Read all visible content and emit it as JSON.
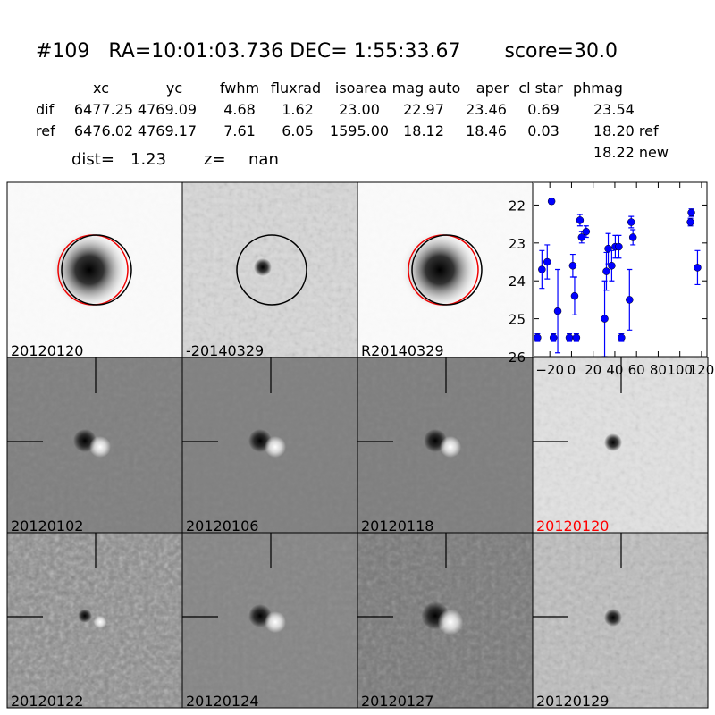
{
  "header": {
    "title": "#109   RA=10:01:03.736 DEC= 1:55:33.67       score=30.0"
  },
  "table": {
    "columns": [
      "xc",
      "yc",
      "fwhm",
      "fluxrad",
      "isoarea",
      "mag auto",
      "aper",
      "cl star",
      "phmag"
    ],
    "rows": [
      [
        "dif",
        "6477.25",
        "4769.09",
        "4.68",
        "1.62",
        "23.00",
        "22.97",
        "23.46",
        "0.69",
        "23.54"
      ],
      [
        "ref",
        "6476.02",
        "4769.17",
        "7.61",
        "6.05",
        "1595.00",
        "18.12",
        "18.46",
        "0.03",
        "18.20 ref"
      ]
    ],
    "extra": "18.22 new"
  },
  "summary": {
    "dist_label": "dist=",
    "dist": "1.23",
    "z_label": "z=",
    "z": "nan"
  },
  "panels": [
    {
      "label": "20120120"
    },
    {
      "label": "-20140329"
    },
    {
      "label": "R20140329"
    },
    {
      "label": "20120102"
    },
    {
      "label": "20120106"
    },
    {
      "label": "20120118"
    },
    {
      "label": "20120120",
      "color": "#ff0000"
    },
    {
      "label": "20120122"
    },
    {
      "label": "20120124"
    },
    {
      "label": "20120127"
    },
    {
      "label": "20120129"
    }
  ],
  "chart_data": {
    "type": "scatter",
    "x": [
      -31.4,
      -27.3,
      -22.4,
      -18.4,
      -16.7,
      -12.7,
      -2,
      1.2,
      2.9,
      4.5,
      7.8,
      9.4,
      13.5,
      30.6,
      32.2,
      33.9,
      37.1,
      40.4,
      43.7,
      46.1,
      53.5,
      55.1,
      56.7,
      109.8,
      110.6,
      116.3
    ],
    "series": [
      {
        "color": "#0000ff",
        "values": [
          25.5,
          23.7,
          23.5,
          21.9,
          25.5,
          24.8,
          25.5,
          23.6,
          24.4,
          25.5,
          22.4,
          22.85,
          22.7,
          25.0,
          23.75,
          23.15,
          23.6,
          23.1,
          23.1,
          25.5,
          24.5,
          22.45,
          22.85,
          22.45,
          22.2,
          23.65
        ],
        "errors": [
          0.1,
          0.5,
          0.45,
          0.07,
          0.1,
          1.1,
          0.1,
          0.3,
          0.5,
          0.1,
          0.15,
          0.15,
          0.15,
          1.0,
          0.5,
          0.4,
          0.4,
          0.3,
          0.3,
          0.1,
          0.8,
          0.15,
          0.2,
          0.1,
          0.1,
          0.45
        ]
      }
    ],
    "xlim": [
      -35,
      125
    ],
    "ylim": [
      21.4,
      26
    ],
    "y_inverted": true,
    "xticks": [
      {
        "value": -20,
        "label": "−20"
      },
      0,
      20,
      40,
      60,
      80,
      100,
      120
    ],
    "yticks": [
      22,
      23,
      24,
      25,
      26
    ]
  }
}
